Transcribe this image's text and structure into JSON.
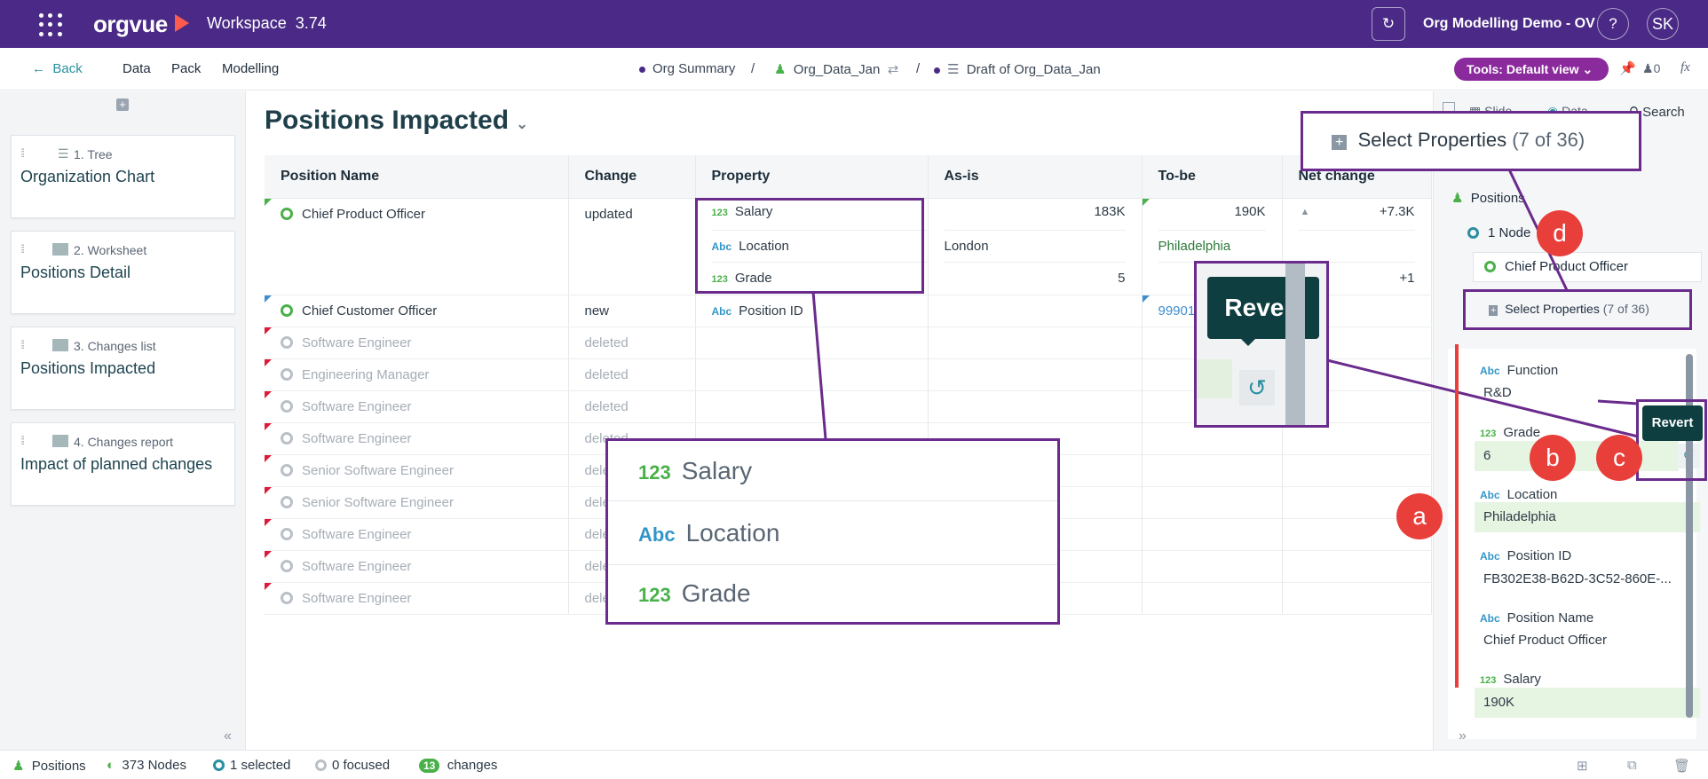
{
  "topbar": {
    "logo": "orgvue",
    "workspace": "Workspace",
    "version": "3.74",
    "dataset": "Org Modelling Demo - OV",
    "help": "?",
    "avatar": "SK"
  },
  "subnav": {
    "back": "Back",
    "items": [
      "Data",
      "Pack",
      "Modelling"
    ],
    "crumbs": [
      "Org Summary",
      "Org_Data_Jan",
      "Draft of Org_Data_Jan"
    ],
    "separator": "/",
    "tools": "Tools: Default view",
    "count": "0",
    "fx": "fx"
  },
  "pages": [
    {
      "num": "1. Tree",
      "title": "Organization Chart"
    },
    {
      "num": "2. Worksheet",
      "title": "Positions Detail"
    },
    {
      "num": "3. Changes list",
      "title": "Positions Impacted"
    },
    {
      "num": "4. Changes report",
      "title": "Impact of planned changes"
    }
  ],
  "main": {
    "title": "Positions Impacted",
    "columns": [
      "Position Name",
      "Change",
      "Property",
      "As-is",
      "To-be",
      "Net change"
    ],
    "rows": [
      {
        "name": "Chief Product Officer",
        "change": "updated"
      },
      {
        "name": "Chief Customer Officer",
        "change": "new"
      },
      {
        "name": "Software Engineer",
        "change": "deleted"
      },
      {
        "name": "Engineering Manager",
        "change": "deleted"
      },
      {
        "name": "Software Engineer",
        "change": "deleted"
      },
      {
        "name": "Software Engineer",
        "change": "deleted"
      },
      {
        "name": "Senior Software Engineer",
        "change": "dele"
      },
      {
        "name": "Senior Software Engineer",
        "change": "dele"
      },
      {
        "name": "Software Engineer",
        "change": "dele"
      },
      {
        "name": "Software Engineer",
        "change": "dele"
      },
      {
        "name": "Software Engineer",
        "change": "dele"
      }
    ],
    "cpo_props": [
      {
        "type": "123",
        "name": "Salary",
        "asis": "183K",
        "tobe": "190K",
        "net": "+7.3K"
      },
      {
        "type": "Abc",
        "name": "Location",
        "asis": "London",
        "tobe": "Philadelphia",
        "net": ""
      },
      {
        "type": "123",
        "name": "Grade",
        "asis": "5",
        "tobe": "",
        "net": "+1"
      }
    ],
    "cco_prop": {
      "type": "Abc",
      "name": "Position ID",
      "tobe": "99901"
    }
  },
  "rightpanel": {
    "tabs": [
      "Slide",
      "Data",
      "Search"
    ],
    "object": "Positions",
    "nodes": "1 Node",
    "selected": "Chief Product Officer",
    "select_props": "Select Properties",
    "select_count": "(7 of 36)",
    "props": [
      {
        "type": "Abc",
        "name": "Function",
        "value": "R&D",
        "changed": false
      },
      {
        "type": "123",
        "name": "Grade",
        "value": "6",
        "changed": true
      },
      {
        "type": "Abc",
        "name": "Location",
        "value": "Philadelphia",
        "changed": true
      },
      {
        "type": "Abc",
        "name": "Position ID",
        "value": "FB302E38-B62D-3C52-860E-...",
        "changed": false
      },
      {
        "type": "Abc",
        "name": "Position Name",
        "value": "Chief Product Officer",
        "changed": false
      },
      {
        "type": "123",
        "name": "Salary",
        "value": "190K",
        "changed": true
      }
    ]
  },
  "statusbar": {
    "object": "Positions",
    "nodes": "373 Nodes",
    "selected": "1 selected",
    "focused": "0 focused",
    "changes_count": "13",
    "changes": "changes"
  },
  "annotations": {
    "revert": "Revert",
    "labels": [
      "a",
      "b",
      "c",
      "d"
    ],
    "zoom_props": [
      {
        "type": "123",
        "name": "Salary"
      },
      {
        "type": "Abc",
        "name": "Location"
      },
      {
        "type": "123",
        "name": "Grade"
      }
    ],
    "zoom_select": "Select Properties",
    "zoom_select_count": "(7 of 36)"
  },
  "colors": {
    "topbar": "#4a2a86",
    "accent": "#8b2a9c",
    "annotation": "#6a2b8c",
    "badge": "#e83f3b",
    "changed": "#e6f4e2"
  }
}
